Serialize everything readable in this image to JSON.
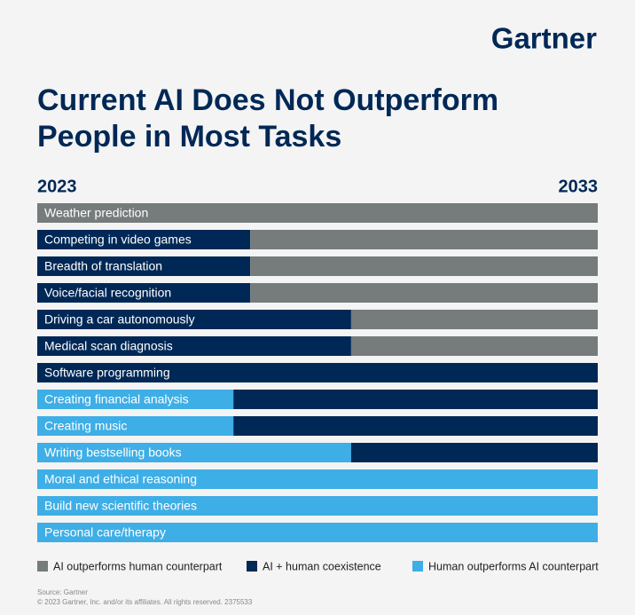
{
  "chart_data": {
    "type": "stacked-barh",
    "brand": "Gartner",
    "title": [
      "Current AI Does Not Outperform",
      "People in Most Tasks"
    ],
    "categories": [
      "Weather prediction",
      "Competing in video games",
      "Breadth of translation",
      "Voice/facial recognition",
      "Driving a car autonomously",
      "Medical scan diagnosis",
      "Software programming",
      "Creating financial analysis",
      "Creating music",
      "Writing bestselling books",
      "Moral and ethical reasoning",
      "Build new scientific theories",
      "Personal care/therapy"
    ],
    "series": [
      {
        "name": "Human outperforms AI counterpart",
        "color": "#3eaee6",
        "values": [
          0,
          0,
          0,
          0,
          0,
          0,
          0,
          3.5,
          3.5,
          5.6,
          10,
          10,
          10
        ]
      },
      {
        "name": "AI + human coexistence",
        "color": "#002856",
        "values": [
          0,
          3.8,
          3.8,
          3.8,
          5.6,
          5.6,
          10,
          6.5,
          6.5,
          4.4,
          0,
          0,
          0
        ]
      },
      {
        "name": "AI outperforms human counterpart",
        "color": "#767b7b",
        "values": [
          10,
          6.2,
          6.2,
          6.2,
          4.4,
          4.4,
          0,
          0,
          0,
          0,
          0,
          0,
          0
        ]
      }
    ],
    "legend_order": [
      2,
      1,
      0
    ],
    "xlim": [
      0,
      10
    ],
    "xticks": [
      {
        "value": 0,
        "label": "2023"
      },
      {
        "value": 10,
        "label": "2033"
      }
    ],
    "source": [
      "Source: Gartner",
      "© 2023 Gartner, Inc. and/or its affiliates. All rights reserved. 2375533"
    ]
  }
}
